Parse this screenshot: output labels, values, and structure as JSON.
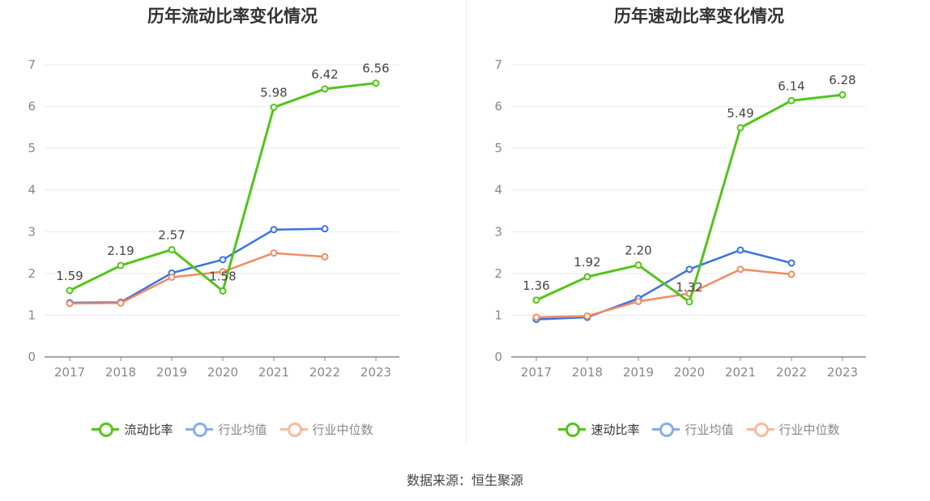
{
  "source_text": "数据来源：恒生聚源",
  "colors": {
    "company": "#52c41a",
    "average": "#3b73e0",
    "median": "#f08c63",
    "grid": "#e9e9f1",
    "axis": "#8a8a8a",
    "text": "#888888"
  },
  "chart_data": [
    {
      "type": "line",
      "title": "历年流动比率变化情况",
      "categories": [
        "2017",
        "2018",
        "2019",
        "2020",
        "2021",
        "2022",
        "2023"
      ],
      "y_ticks": [
        "0",
        "1",
        "2",
        "3",
        "4",
        "5",
        "6",
        "7"
      ],
      "ylim": [
        0,
        7
      ],
      "grid": true,
      "legend_position": "bottom-center",
      "series": [
        {
          "name": "流动比率",
          "key": "company",
          "values": [
            1.59,
            2.19,
            2.57,
            1.58,
            5.98,
            6.42,
            6.56
          ],
          "labels": [
            "1.59",
            "2.19",
            "2.57",
            "1.58",
            "5.98",
            "6.42",
            "6.56"
          ]
        },
        {
          "name": "行业均值",
          "key": "average",
          "values": [
            1.3,
            1.31,
            2.01,
            2.33,
            3.05,
            3.07,
            null
          ]
        },
        {
          "name": "行业中位数",
          "key": "median",
          "values": [
            1.28,
            1.29,
            1.91,
            2.04,
            2.49,
            2.4,
            null
          ]
        }
      ]
    },
    {
      "type": "line",
      "title": "历年速动比率变化情况",
      "categories": [
        "2017",
        "2018",
        "2019",
        "2020",
        "2021",
        "2022",
        "2023"
      ],
      "y_ticks": [
        "0",
        "1",
        "2",
        "3",
        "4",
        "5",
        "6",
        "7"
      ],
      "ylim": [
        0,
        7
      ],
      "grid": true,
      "legend_position": "bottom-center",
      "series": [
        {
          "name": "速动比率",
          "key": "company",
          "values": [
            1.36,
            1.92,
            2.2,
            1.32,
            5.49,
            6.14,
            6.28
          ],
          "labels": [
            "1.36",
            "1.92",
            "2.20",
            "1.32",
            "5.49",
            "6.14",
            "6.28"
          ]
        },
        {
          "name": "行业均值",
          "key": "average",
          "values": [
            0.9,
            0.95,
            1.4,
            2.1,
            2.56,
            2.25,
            null
          ]
        },
        {
          "name": "行业中位数",
          "key": "median",
          "values": [
            0.95,
            0.98,
            1.33,
            1.52,
            2.1,
            1.98,
            null
          ]
        }
      ]
    }
  ]
}
